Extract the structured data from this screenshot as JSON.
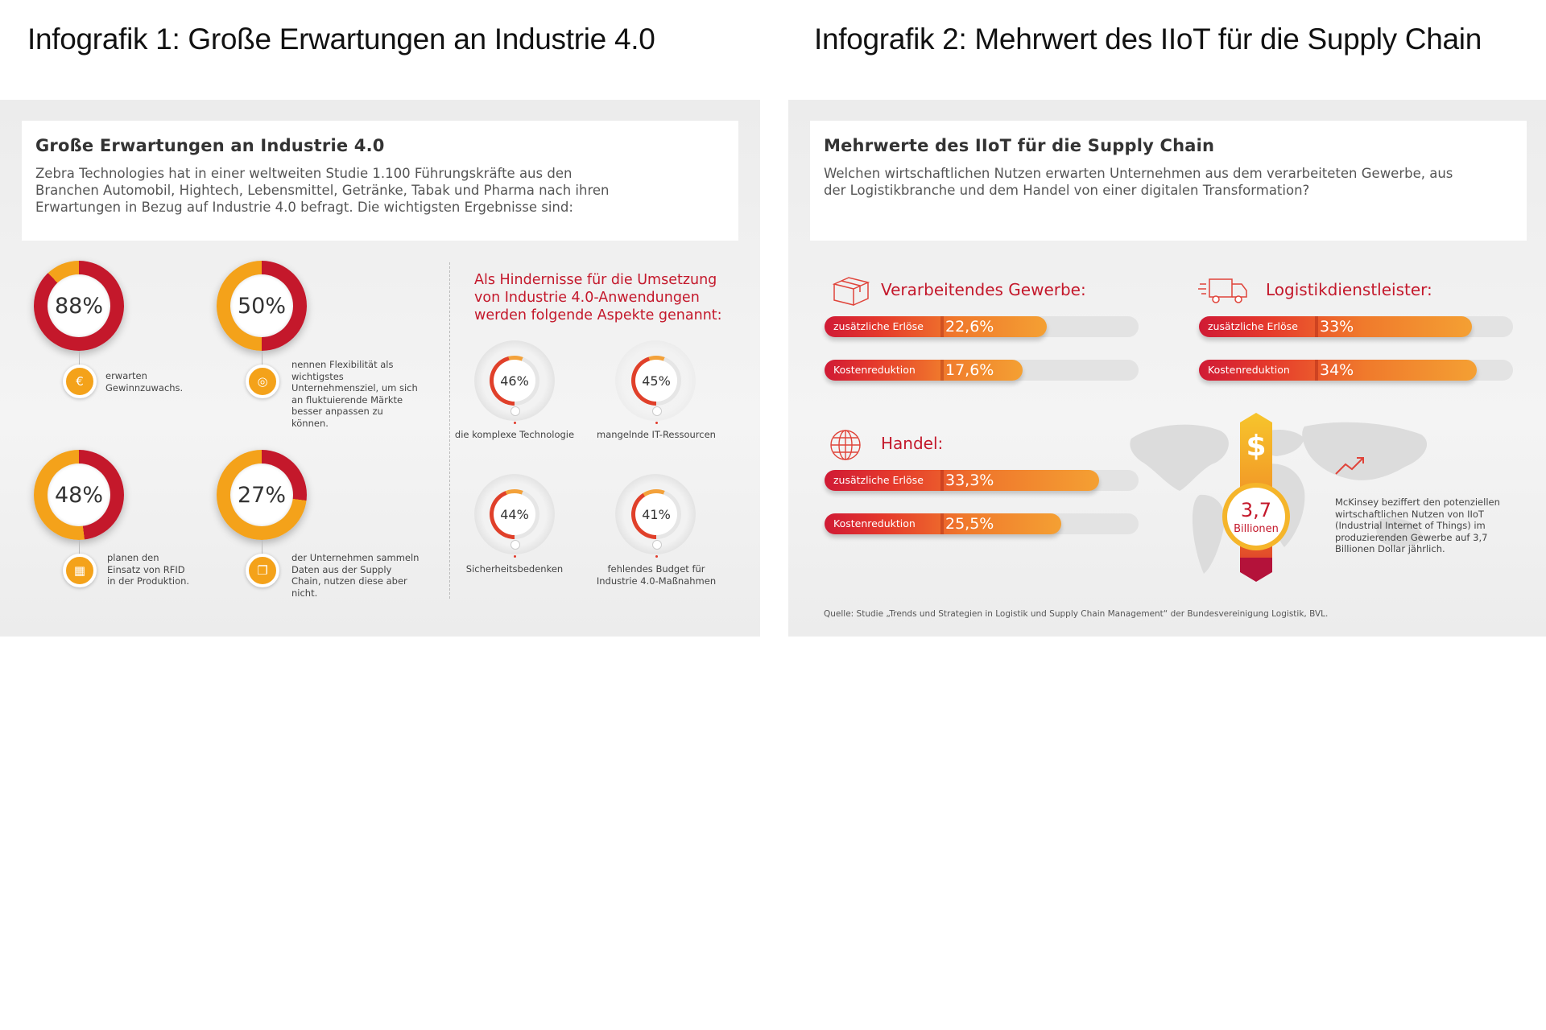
{
  "infographic1": {
    "page_title": "Infografik 1: Große Erwartungen an Industrie 4.0",
    "header": {
      "title": "Große Erwartungen an Industrie 4.0",
      "text": "Zebra Technologies hat in einer weltweiten Studie 1.100 Führungskräfte aus den Branchen Automobil, Hightech, Lebensmittel, Getränke, Tabak und Pharma nach ihren Erwartungen in Bezug auf Industrie 4.0 befragt. Die wichtigsten Ergebnisse sind:"
    },
    "stats": [
      {
        "value": "88%",
        "text": "erwarten Gewinnzuwachs.",
        "icon": "euro-icon"
      },
      {
        "value": "50%",
        "text": "nennen Flexibilität als wichtigstes Unternehmensziel, um sich an fluktuierende Märkte besser anpassen zu können.",
        "icon": "target-icon"
      },
      {
        "value": "48%",
        "text": "planen den Einsatz von RFID in der Produktion.",
        "icon": "rfid-icon"
      },
      {
        "value": "27%",
        "text": "der Unternehmen sammeln Daten aus der Supply Chain, nutzen diese aber nicht.",
        "icon": "documents-icon"
      }
    ],
    "obstacles": {
      "heading": "Als Hindernisse für die Umsetzung von Industrie 4.0-Anwendungen werden folgende Aspekte genannt:",
      "items": [
        {
          "value": "46%",
          "label": "die komplexe Technologie"
        },
        {
          "value": "45%",
          "label": "mangelnde IT-Ressourcen"
        },
        {
          "value": "44%",
          "label": "Sicherheitsbedenken"
        },
        {
          "value": "41%",
          "label": "fehlendes Budget für Industrie 4.0-Maßnahmen"
        }
      ]
    }
  },
  "infographic2": {
    "page_title": "Infografik 2: Mehrwert des IIoT für die Supply Chain",
    "header": {
      "title": "Mehrwerte des IIoT für die Supply Chain",
      "text": "Welchen wirtschaftlichen Nutzen erwarten Unternehmen aus dem verarbeiteten Gewerbe, aus der Logistikbranche und dem Handel von einer digitalen Transformation?"
    },
    "sectors": [
      {
        "name": "Verarbeitendes Gewerbe:",
        "icon": "box-icon",
        "bars": [
          {
            "label": "zusätzliche Erlöse",
            "value_text": "22,6%"
          },
          {
            "label": "Kostenreduktion",
            "value_text": "17,6%"
          }
        ]
      },
      {
        "name": "Logistikdienstleister:",
        "icon": "truck-icon",
        "bars": [
          {
            "label": "zusätzliche Erlöse",
            "value_text": "33%"
          },
          {
            "label": "Kostenreduktion",
            "value_text": "34%"
          }
        ]
      },
      {
        "name": "Handel:",
        "icon": "globe-icon",
        "bars": [
          {
            "label": "zusätzliche Erlöse",
            "value_text": "33,3%"
          },
          {
            "label": "Kostenreduktion",
            "value_text": "25,5%"
          }
        ]
      }
    ],
    "mckinsey": {
      "dollar_sign": "$",
      "value": "3,7",
      "unit": "Billionen",
      "text": "McKinsey beziffert den potenziellen wirtschaftlichen Nutzen von IIoT (Industrial Internet of Things) im produzierenden Gewerbe auf 3,7 Billionen Dollar jährlich.",
      "icon": "trend-up-icon"
    },
    "source": "Quelle: Studie „Trends und Strategien in Logistik und Supply Chain Management“ der Bundesvereinigung Logistik, BVL."
  },
  "colors": {
    "red": "#c4182b",
    "dark_red": "#9c1020",
    "orange": "#f07a2c",
    "yellow": "#f4a21a"
  },
  "chart_data": [
    {
      "type": "pie",
      "categories": [
        "erwarten Gewinnzuwachs"
      ],
      "values": [
        88
      ]
    },
    {
      "type": "pie",
      "categories": [
        "nennen Flexibilität als wichtigstes Unternehmensziel"
      ],
      "values": [
        50
      ]
    },
    {
      "type": "pie",
      "categories": [
        "planen den Einsatz von RFID in der Produktion"
      ],
      "values": [
        48
      ]
    },
    {
      "type": "pie",
      "categories": [
        "sammeln Daten aus der Supply Chain, nutzen diese aber nicht"
      ],
      "values": [
        27
      ]
    },
    {
      "type": "pie",
      "categories": [
        "die komplexe Technologie",
        "mangelnde IT-Ressourcen",
        "Sicherheitsbedenken",
        "fehlendes Budget für Industrie 4.0-Maßnahmen"
      ],
      "values": [
        46,
        45,
        44,
        41
      ]
    },
    {
      "type": "bar",
      "title": "Verarbeitendes Gewerbe:",
      "categories": [
        "zusätzliche Erlöse",
        "Kostenreduktion"
      ],
      "values": [
        22.6,
        17.6
      ]
    },
    {
      "type": "bar",
      "title": "Logistikdienstleister:",
      "categories": [
        "zusätzliche Erlöse",
        "Kostenreduktion"
      ],
      "values": [
        33,
        34
      ]
    },
    {
      "type": "bar",
      "title": "Handel:",
      "categories": [
        "zusätzliche Erlöse",
        "Kostenreduktion"
      ],
      "values": [
        33.3,
        25.5
      ]
    }
  ]
}
